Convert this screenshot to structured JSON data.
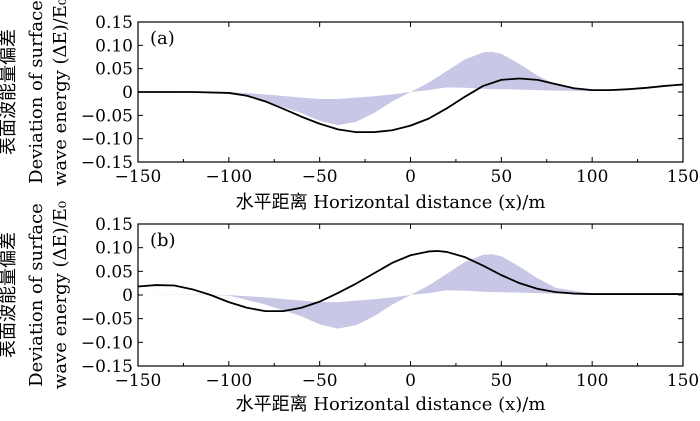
{
  "chart_data": [
    {
      "type": "line",
      "panel_label": "(a)",
      "xlabel": "水平距离 Horizontal distance (x)/m",
      "ylabel_lines": [
        "表面波能量偏差",
        "Deviation of surface",
        "wave energy (ΔE)/E₀"
      ],
      "xlim": [
        -150,
        150
      ],
      "ylim": [
        -0.15,
        0.15
      ],
      "xticks": [
        -150,
        -100,
        -50,
        0,
        50,
        100,
        150
      ],
      "xtick_labels": [
        "−150",
        "−100",
        "−50",
        "0",
        "50",
        "100",
        "150"
      ],
      "yticks": [
        0.15,
        0.1,
        0.05,
        0,
        -0.05,
        -0.1,
        -0.15
      ],
      "ytick_labels": [
        "0.15",
        "0.10",
        "0.05",
        "0",
        "−0.05",
        "−0.10",
        "−0.15"
      ],
      "grid": false,
      "series": [
        {
          "kind": "shaded-area",
          "color": "#c8c8e6",
          "upper": {
            "x": [
              -150,
              -100,
              -80,
              -60,
              -50,
              -40,
              -30,
              -20,
              -10,
              0,
              10,
              20,
              30,
              40,
              45,
              50,
              60,
              70,
              80,
              100,
              120,
              150
            ],
            "y": [
              0.002,
              0.0,
              -0.005,
              -0.012,
              -0.015,
              -0.015,
              -0.012,
              -0.009,
              -0.005,
              0.0,
              0.004,
              0.01,
              0.009,
              0.007,
              0.006,
              0.006,
              0.005,
              0.004,
              0.003,
              0.002,
              0.003,
              0.006
            ]
          },
          "lower": {
            "x": [
              -150,
              -100,
              -80,
              -60,
              -50,
              -40,
              -30,
              -20,
              -10,
              0,
              10,
              20,
              30,
              40,
              45,
              50,
              60,
              70,
              80,
              100,
              120,
              150
            ],
            "y": [
              0.002,
              -0.001,
              -0.02,
              -0.045,
              -0.062,
              -0.071,
              -0.064,
              -0.045,
              -0.02,
              0.0,
              0.02,
              0.045,
              0.07,
              0.085,
              0.086,
              0.082,
              0.06,
              0.035,
              0.015,
              0.003,
              0.003,
              0.006
            ]
          }
        },
        {
          "kind": "line",
          "color": "#000000",
          "x": [
            -150,
            -120,
            -100,
            -90,
            -80,
            -70,
            -60,
            -50,
            -40,
            -30,
            -20,
            -10,
            0,
            10,
            20,
            30,
            40,
            50,
            60,
            70,
            80,
            90,
            100,
            110,
            120,
            130,
            140,
            150
          ],
          "y": [
            0.0,
            0.0,
            -0.002,
            -0.008,
            -0.02,
            -0.036,
            -0.053,
            -0.068,
            -0.08,
            -0.086,
            -0.086,
            -0.082,
            -0.072,
            -0.057,
            -0.035,
            -0.01,
            0.013,
            0.026,
            0.029,
            0.026,
            0.017,
            0.008,
            0.004,
            0.004,
            0.006,
            0.009,
            0.013,
            0.016
          ]
        }
      ]
    },
    {
      "type": "line",
      "panel_label": "(b)",
      "xlabel": "水平距离 Horizontal distance (x)/m",
      "ylabel_lines": [
        "表面波能量偏差",
        "Deviation of surface",
        "wave energy (ΔE)/E₀"
      ],
      "xlim": [
        -150,
        150
      ],
      "ylim": [
        -0.15,
        0.15
      ],
      "xticks": [
        -150,
        -100,
        -50,
        0,
        50,
        100,
        150
      ],
      "xtick_labels": [
        "−150",
        "−100",
        "−50",
        "0",
        "50",
        "100",
        "150"
      ],
      "yticks": [
        0.15,
        0.1,
        0.05,
        0,
        -0.05,
        -0.1,
        -0.15
      ],
      "ytick_labels": [
        "0.15",
        "0.10",
        "0.05",
        "0",
        "−0.05",
        "−0.10",
        "−0.15"
      ],
      "grid": false,
      "series": [
        {
          "kind": "shaded-area",
          "color": "#c8c8e6",
          "upper": {
            "x": [
              -150,
              -100,
              -80,
              -60,
              -50,
              -40,
              -30,
              -20,
              -10,
              0,
              10,
              20,
              30,
              40,
              45,
              50,
              60,
              70,
              80,
              100,
              120,
              150
            ],
            "y": [
              0.002,
              0.0,
              -0.005,
              -0.012,
              -0.015,
              -0.015,
              -0.012,
              -0.009,
              -0.005,
              0.0,
              0.004,
              0.01,
              0.009,
              0.007,
              0.006,
              0.006,
              0.005,
              0.004,
              0.003,
              0.002,
              0.003,
              0.006
            ]
          },
          "lower": {
            "x": [
              -150,
              -100,
              -80,
              -60,
              -50,
              -40,
              -30,
              -20,
              -10,
              0,
              10,
              20,
              30,
              40,
              45,
              50,
              60,
              70,
              80,
              100,
              120,
              150
            ],
            "y": [
              0.002,
              -0.001,
              -0.02,
              -0.045,
              -0.062,
              -0.071,
              -0.064,
              -0.045,
              -0.02,
              0.0,
              0.02,
              0.045,
              0.07,
              0.085,
              0.086,
              0.082,
              0.06,
              0.035,
              0.015,
              0.003,
              0.003,
              0.006
            ]
          }
        },
        {
          "kind": "line",
          "color": "#000000",
          "x": [
            -150,
            -140,
            -130,
            -120,
            -110,
            -100,
            -90,
            -80,
            -70,
            -60,
            -50,
            -40,
            -30,
            -20,
            -10,
            0,
            10,
            15,
            20,
            30,
            40,
            50,
            60,
            70,
            80,
            90,
            100,
            110,
            120,
            130,
            140,
            150
          ],
          "y": [
            0.018,
            0.021,
            0.02,
            0.012,
            0.0,
            -0.015,
            -0.027,
            -0.034,
            -0.034,
            -0.027,
            -0.014,
            0.004,
            0.024,
            0.046,
            0.068,
            0.084,
            0.092,
            0.093,
            0.091,
            0.08,
            0.062,
            0.042,
            0.025,
            0.013,
            0.006,
            0.003,
            0.002,
            0.002,
            0.002,
            0.002,
            0.002,
            0.002
          ]
        }
      ]
    }
  ]
}
